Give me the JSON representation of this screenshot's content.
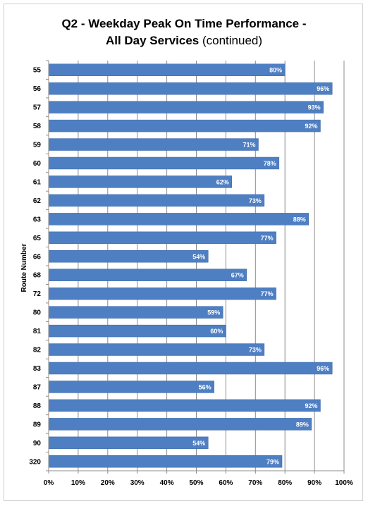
{
  "chart_data": {
    "type": "bar",
    "orientation": "horizontal",
    "title_line1": "Q2 - Weekday Peak On Time Performance -",
    "title_line2_bold": "All Day Services",
    "title_line2_normal": "(continued)",
    "ylabel": "Route Number",
    "xlabel": "",
    "xlim": [
      0,
      100
    ],
    "x_ticks": [
      "0%",
      "10%",
      "20%",
      "30%",
      "40%",
      "50%",
      "60%",
      "70%",
      "80%",
      "90%",
      "100%"
    ],
    "grid": "vertical",
    "bar_color": "#4f7fc3",
    "categories": [
      "55",
      "56",
      "57",
      "58",
      "59",
      "60",
      "61",
      "62",
      "63",
      "65",
      "66",
      "68",
      "72",
      "80",
      "81",
      "82",
      "83",
      "87",
      "88",
      "89",
      "90",
      "320"
    ],
    "values": [
      80,
      96,
      93,
      92,
      71,
      78,
      62,
      73,
      88,
      77,
      54,
      67,
      77,
      59,
      60,
      73,
      96,
      56,
      92,
      89,
      54,
      79
    ],
    "data_labels": [
      "80%",
      "96%",
      "93%",
      "92%",
      "71%",
      "78%",
      "62%",
      "73%",
      "88%",
      "77%",
      "54%",
      "67%",
      "77%",
      "59%",
      "60%",
      "73%",
      "96%",
      "56%",
      "92%",
      "89%",
      "54%",
      "79%"
    ]
  }
}
